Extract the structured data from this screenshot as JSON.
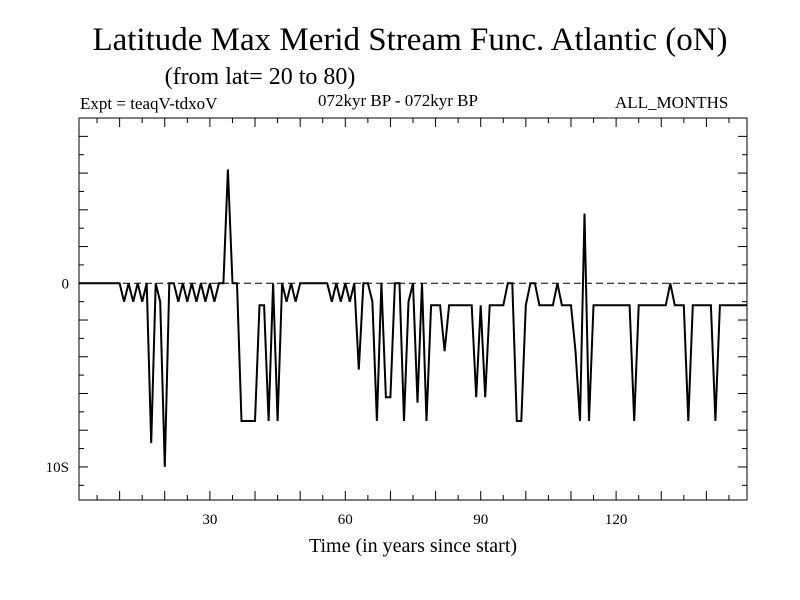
{
  "header": {
    "title": "Latitude Max Merid Stream Func. Atlantic (oN)",
    "subtitle": "(from lat= 20 to 80)",
    "expt": "Expt = teaqV-tdxoV",
    "period": "072kyr BP - 072kyr BP",
    "months": "ALL_MONTHS"
  },
  "colors": {
    "line": "#000000",
    "background": "#ffffff"
  },
  "chart_data": {
    "type": "line",
    "title": "Latitude Max Merid Stream Func. Atlantic (oN)",
    "xlabel": "Time (in years since start)",
    "ylabel": "",
    "xlim": [
      1,
      149
    ],
    "ylim": [
      -11.8,
      9
    ],
    "x_ticks": [
      30,
      60,
      90,
      120
    ],
    "x_tick_labels": [
      "30",
      "60",
      "90",
      "120"
    ],
    "y_ticks": [
      0,
      -10
    ],
    "y_tick_labels": [
      "0",
      "10S"
    ],
    "reference_line": 0,
    "series": [
      {
        "name": "teaqV-tdxoV",
        "x": [
          1,
          2,
          3,
          4,
          5,
          6,
          7,
          8,
          9,
          10,
          11,
          12,
          13,
          14,
          15,
          16,
          17,
          18,
          19,
          20,
          21,
          22,
          23,
          24,
          25,
          26,
          27,
          28,
          29,
          30,
          31,
          32,
          33,
          34,
          35,
          36,
          37,
          38,
          39,
          40,
          41,
          42,
          43,
          44,
          45,
          46,
          47,
          48,
          49,
          50,
          51,
          52,
          53,
          54,
          55,
          56,
          57,
          58,
          59,
          60,
          61,
          62,
          63,
          64,
          65,
          66,
          67,
          68,
          69,
          70,
          71,
          72,
          73,
          74,
          75,
          76,
          77,
          78,
          79,
          80,
          81,
          82,
          83,
          84,
          85,
          86,
          87,
          88,
          89,
          90,
          91,
          92,
          93,
          94,
          95,
          96,
          97,
          98,
          99,
          100,
          101,
          102,
          103,
          104,
          105,
          106,
          107,
          108,
          109,
          110,
          111,
          112,
          113,
          114,
          115,
          116,
          117,
          118,
          119,
          120,
          121,
          122,
          123,
          124,
          125,
          126,
          127,
          128,
          129,
          130,
          131,
          132,
          133,
          134,
          135,
          136,
          137,
          138,
          139,
          140,
          141,
          142,
          143,
          144,
          145,
          146,
          147,
          148,
          149
        ],
        "values": [
          0,
          0,
          0,
          0,
          0,
          0,
          0,
          0,
          0,
          0,
          -1,
          0,
          -1,
          0,
          -1,
          0,
          -8.7,
          0,
          -1,
          -10,
          0,
          0,
          -1,
          0,
          -1,
          0,
          -1,
          0,
          -1,
          0,
          -1,
          0,
          0,
          6.2,
          0,
          0,
          -7.5,
          -7.5,
          -7.5,
          -7.5,
          -1.2,
          -1.2,
          -7.5,
          0,
          -7.5,
          0,
          -1,
          0,
          -1,
          0,
          0,
          0,
          0,
          0,
          0,
          0,
          -1,
          0,
          -1,
          0,
          -1,
          0,
          -4.7,
          0,
          0,
          -1,
          -7.5,
          0,
          -6.2,
          -6.2,
          0,
          0,
          -7.5,
          -1,
          0,
          -6.5,
          0,
          -7.5,
          -1.2,
          -1.2,
          -1.2,
          -3.7,
          -1.2,
          -1.2,
          -1.2,
          -1.2,
          -1.2,
          -1.2,
          -6.2,
          -1.2,
          -6.2,
          -1.2,
          -1.2,
          -1.2,
          -1.2,
          0,
          0,
          -7.5,
          -7.5,
          -1.2,
          0,
          0,
          -1.2,
          -1.2,
          -1.2,
          -1.2,
          0,
          -1.2,
          -1.2,
          -1.2,
          -3.7,
          -7.5,
          3.8,
          -7.5,
          -1.2,
          -1.2,
          -1.2,
          -1.2,
          -1.2,
          -1.2,
          -1.2,
          -1.2,
          -1.2,
          -7.5,
          -1.2,
          -1.2,
          -1.2,
          -1.2,
          -1.2,
          -1.2,
          -1.2,
          0,
          -1.2,
          -1.2,
          -1.2,
          -7.5,
          -1.2,
          -1.2,
          -1.2,
          -1.2,
          -1.2,
          -7.5,
          -1.2,
          -1.2,
          -1.2,
          -1.2,
          -1.2,
          -1.2,
          -1.2
        ]
      }
    ]
  }
}
